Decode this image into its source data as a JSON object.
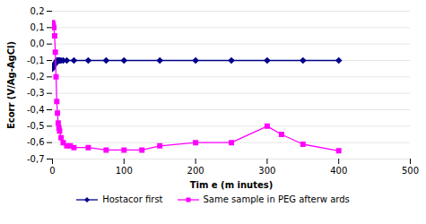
{
  "chart_data": {
    "type": "line",
    "xlabel": "Tim e (m inutes)",
    "ylabel": "Ecorr (V/Ag-AgCl)",
    "series": [
      {
        "name": "Hostacor first",
        "color": "#00008B",
        "marker": "diamond",
        "x": [
          0,
          1,
          2,
          3,
          4,
          5,
          6,
          7,
          8,
          9,
          10,
          12,
          15,
          20,
          30,
          50,
          75,
          100,
          150,
          200,
          250,
          300,
          350,
          400
        ],
        "values": [
          -0.15,
          -0.14,
          -0.13,
          -0.12,
          -0.12,
          -0.11,
          -0.1,
          -0.1,
          -0.1,
          -0.1,
          -0.1,
          -0.1,
          -0.1,
          -0.1,
          -0.1,
          -0.1,
          -0.1,
          -0.1,
          -0.1,
          -0.1,
          -0.1,
          -0.1,
          -0.1,
          -0.1
        ]
      },
      {
        "name": "Same sample in PEG afterw ards",
        "color": "#FF00FF",
        "marker": "square",
        "x": [
          0,
          1,
          2,
          3,
          4,
          5,
          6,
          7,
          8,
          9,
          10,
          12,
          15,
          20,
          25,
          30,
          50,
          75,
          100,
          125,
          150,
          200,
          250,
          300,
          320,
          350,
          400
        ],
        "values": [
          0.13,
          0.12,
          0.1,
          0.05,
          -0.05,
          -0.2,
          -0.35,
          -0.42,
          -0.48,
          -0.51,
          -0.53,
          -0.57,
          -0.6,
          -0.62,
          -0.62,
          -0.63,
          -0.63,
          -0.645,
          -0.645,
          -0.645,
          -0.62,
          -0.6,
          -0.6,
          -0.5,
          -0.55,
          -0.61,
          -0.65
        ]
      }
    ],
    "xlim": [
      0,
      500
    ],
    "ylim": [
      -0.7,
      0.2
    ],
    "xticks": [
      0,
      100,
      200,
      300,
      400,
      500
    ],
    "yticks": [
      {
        "value": 0.2,
        "label": "0,2"
      },
      {
        "value": 0.1,
        "label": "0,1"
      },
      {
        "value": 0.0,
        "label": "0,0"
      },
      {
        "value": -0.1,
        "label": "-0,1"
      },
      {
        "value": -0.2,
        "label": "-0,2"
      },
      {
        "value": -0.3,
        "label": "-0,3"
      },
      {
        "value": -0.4,
        "label": "-0,4"
      },
      {
        "value": -0.5,
        "label": "-0,5"
      },
      {
        "value": -0.6,
        "label": "-0,6"
      },
      {
        "value": -0.7,
        "label": "-0,7"
      }
    ],
    "grid": "y",
    "legend": "bottom"
  }
}
